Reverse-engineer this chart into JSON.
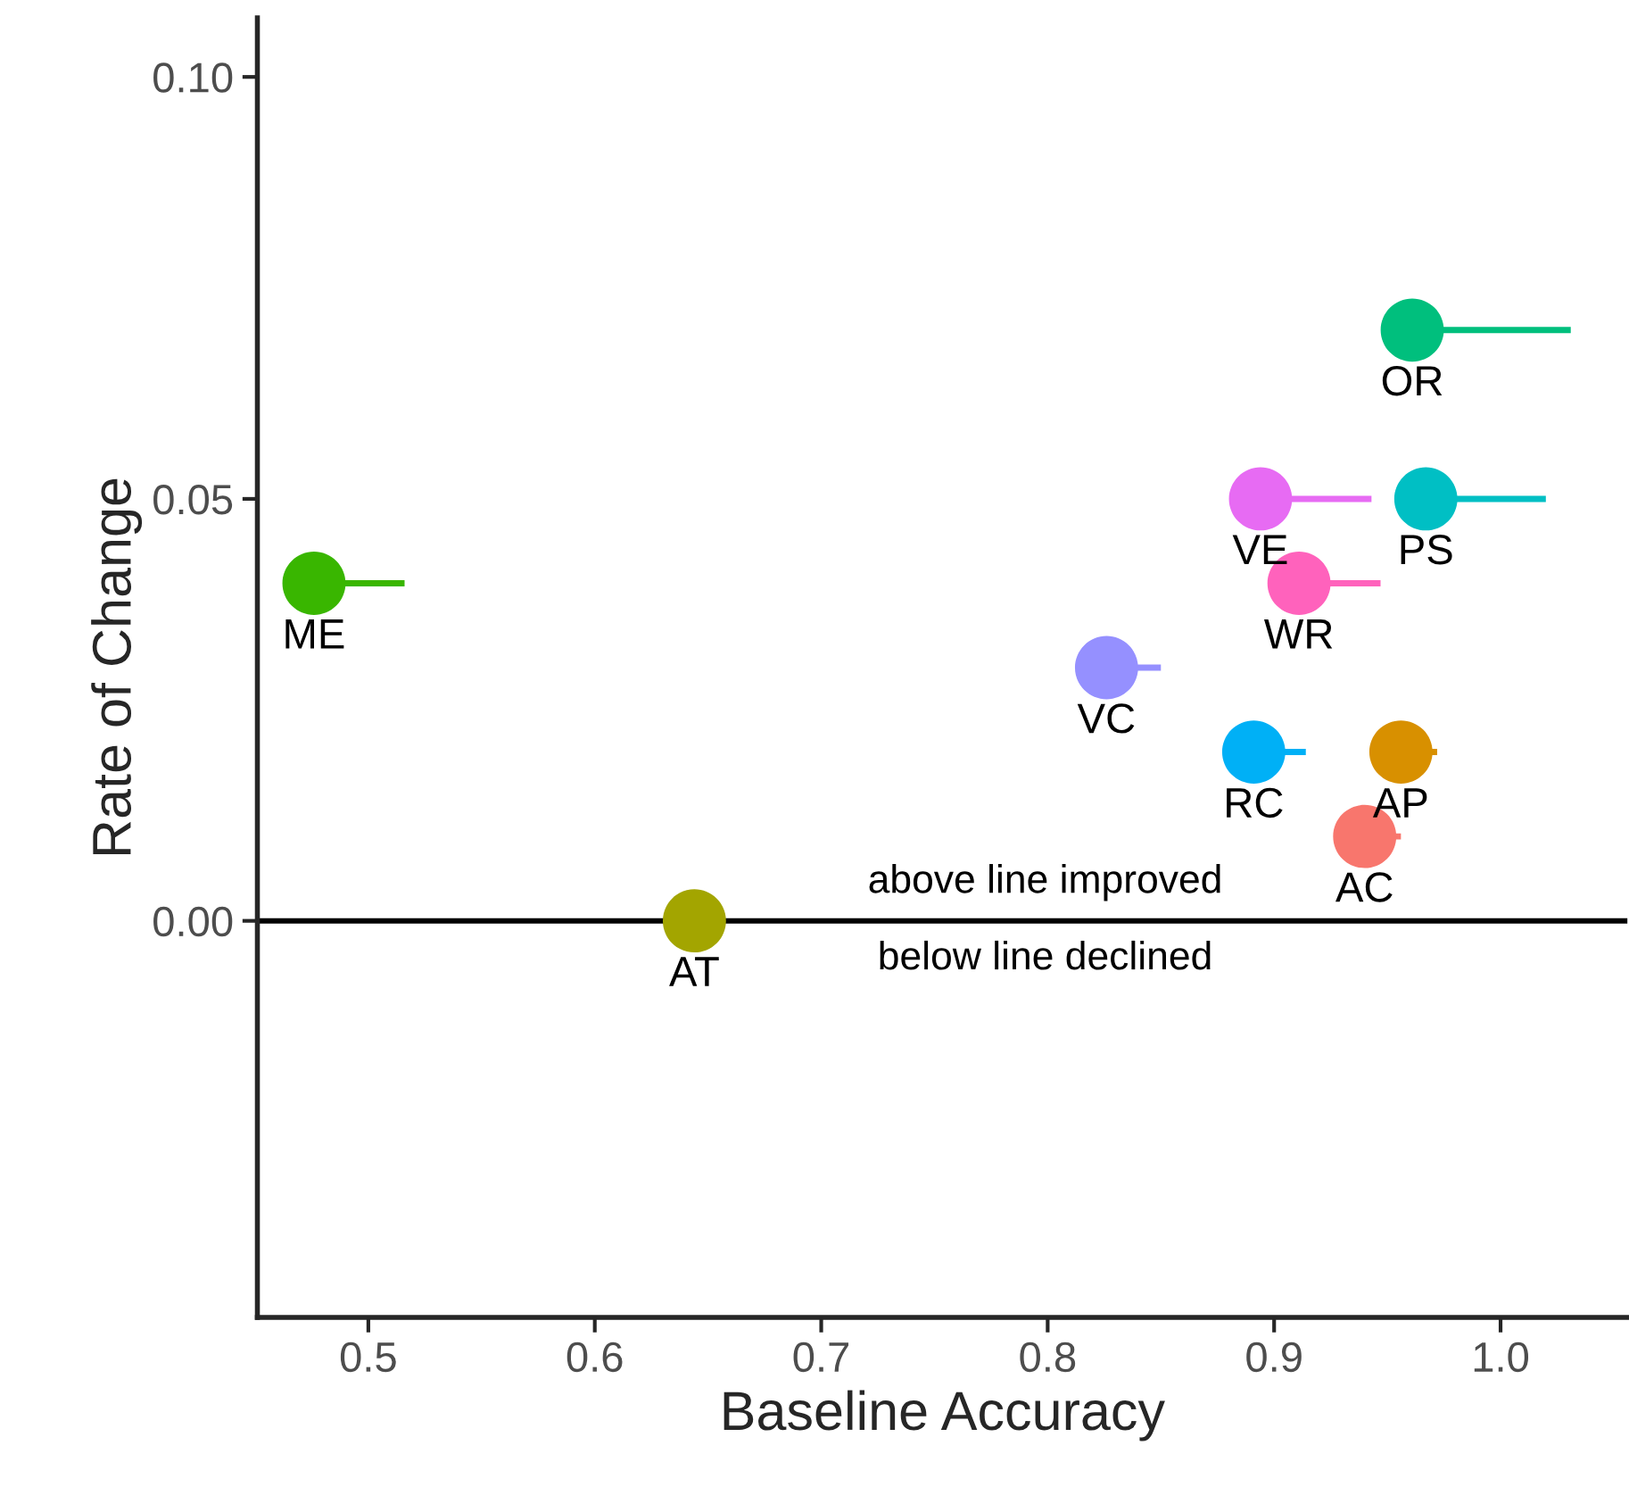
{
  "chart_data": {
    "type": "scatter",
    "xlabel": "Baseline Accuracy",
    "ylabel": "Rate of Change",
    "xlim": [
      0.451,
      1.056
    ],
    "ylim": [
      -0.047,
      0.107
    ],
    "xticks": [
      {
        "value": 0.5,
        "label": "0.5"
      },
      {
        "value": 0.6,
        "label": "0.6"
      },
      {
        "value": 0.7,
        "label": "0.7"
      },
      {
        "value": 0.8,
        "label": "0.8"
      },
      {
        "value": 0.9,
        "label": "0.9"
      },
      {
        "value": 1.0,
        "label": "1.0"
      }
    ],
    "yticks": [
      {
        "value": 0.0,
        "label": "0.00"
      },
      {
        "value": 0.05,
        "label": "0.05"
      },
      {
        "value": 0.1,
        "label": "0.10"
      }
    ],
    "grid": false,
    "legend": false,
    "marker": "circle",
    "ref_lines": [
      {
        "axis": "y",
        "value": 0.0,
        "color": "#000000",
        "line_style": "solid"
      }
    ],
    "annotations": [
      "above line improved",
      "below line declined"
    ],
    "series": [
      {
        "name": "AC",
        "color": "#f8766d",
        "x": [
          0.94
        ],
        "values": [
          0.01
        ],
        "xerrors": [
          [
            0.94,
            0.956
          ]
        ]
      },
      {
        "name": "AP",
        "color": "#d89000",
        "x": [
          0.956
        ],
        "values": [
          0.02
        ],
        "xerrors": [
          [
            0.956,
            0.972
          ]
        ]
      },
      {
        "name": "AT",
        "color": "#a3a500",
        "x": [
          0.644
        ],
        "values": [
          0.0
        ],
        "xerrors": [
          null
        ]
      },
      {
        "name": "ME",
        "color": "#39b600",
        "x": [
          0.476
        ],
        "values": [
          0.04
        ],
        "xerrors": [
          [
            0.476,
            0.516
          ]
        ]
      },
      {
        "name": "OR",
        "color": "#00bf7d",
        "x": [
          0.961
        ],
        "values": [
          0.07
        ],
        "xerrors": [
          [
            0.961,
            1.031
          ]
        ]
      },
      {
        "name": "PS",
        "color": "#00bfc4",
        "x": [
          0.967
        ],
        "values": [
          0.05
        ],
        "xerrors": [
          [
            0.967,
            1.02
          ]
        ]
      },
      {
        "name": "RC",
        "color": "#00b0f6",
        "x": [
          0.891
        ],
        "values": [
          0.02
        ],
        "xerrors": [
          [
            0.891,
            0.914
          ]
        ]
      },
      {
        "name": "VC",
        "color": "#9590ff",
        "x": [
          0.826
        ],
        "values": [
          0.03
        ],
        "xerrors": [
          [
            0.826,
            0.85
          ]
        ]
      },
      {
        "name": "VE",
        "color": "#e76bf3",
        "x": [
          0.894
        ],
        "values": [
          0.05
        ],
        "xerrors": [
          [
            0.894,
            0.943
          ]
        ]
      },
      {
        "name": "WR",
        "color": "#ff62bc",
        "x": [
          0.911
        ],
        "values": [
          0.04
        ],
        "xerrors": [
          [
            0.911,
            0.947
          ]
        ]
      }
    ]
  }
}
